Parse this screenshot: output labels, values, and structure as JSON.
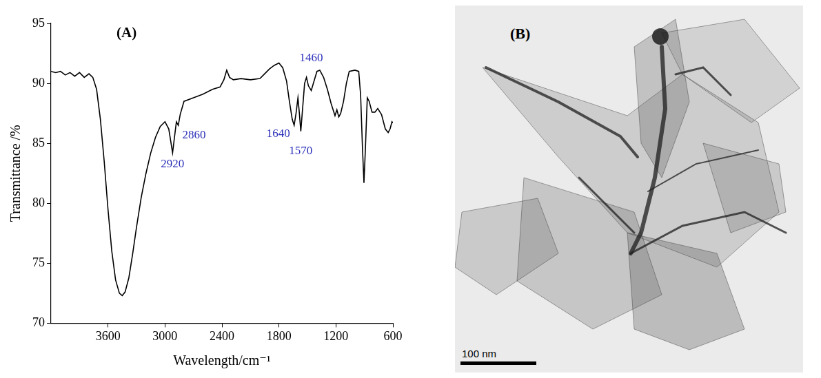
{
  "chart_data": {
    "type": "line",
    "panel_label": "(A)",
    "x_label": "Wavelength/cm⁻¹",
    "y_label": "Transmittance /%",
    "xlim": [
      4200,
      600
    ],
    "xticks": [
      3600,
      3000,
      2400,
      1800,
      1200,
      600
    ],
    "ylim": [
      70,
      95
    ],
    "yticks": [
      70,
      75,
      80,
      85,
      90,
      95
    ],
    "grid": false,
    "color": "#000000",
    "x": [
      4200,
      4150,
      4100,
      4050,
      4000,
      3950,
      3900,
      3850,
      3800,
      3760,
      3720,
      3680,
      3640,
      3600,
      3560,
      3520,
      3480,
      3450,
      3420,
      3380,
      3340,
      3300,
      3250,
      3200,
      3150,
      3100,
      3050,
      3000,
      2960,
      2940,
      2920,
      2900,
      2880,
      2860,
      2840,
      2800,
      2700,
      2600,
      2500,
      2420,
      2380,
      2350,
      2320,
      2280,
      2200,
      2100,
      2000,
      1950,
      1900,
      1850,
      1800,
      1760,
      1720,
      1690,
      1660,
      1640,
      1620,
      1600,
      1585,
      1570,
      1555,
      1530,
      1510,
      1490,
      1460,
      1430,
      1400,
      1370,
      1330,
      1290,
      1250,
      1210,
      1190,
      1170,
      1150,
      1120,
      1090,
      1060,
      1000,
      960,
      940,
      920,
      905,
      890,
      870,
      850,
      820,
      790,
      760,
      720,
      680,
      650,
      630,
      610,
      600
    ],
    "values": [
      91.0,
      90.9,
      91.0,
      90.7,
      90.9,
      90.6,
      90.9,
      90.5,
      90.8,
      90.5,
      89.5,
      87.0,
      83.5,
      79.5,
      76.0,
      73.6,
      72.5,
      72.3,
      72.6,
      73.8,
      75.8,
      78.0,
      80.5,
      82.5,
      84.2,
      85.5,
      86.4,
      86.8,
      86.2,
      85.2,
      84.2,
      85.5,
      86.8,
      86.5,
      87.4,
      88.5,
      88.8,
      89.1,
      89.5,
      89.7,
      90.3,
      91.1,
      90.5,
      90.3,
      90.4,
      90.3,
      90.4,
      90.8,
      91.2,
      91.5,
      91.7,
      91.3,
      90.2,
      88.5,
      87.0,
      86.5,
      87.5,
      88.8,
      87.5,
      86.0,
      87.5,
      90.0,
      90.5,
      89.8,
      89.4,
      90.2,
      91.0,
      91.1,
      90.5,
      89.5,
      88.3,
      87.3,
      87.8,
      87.2,
      87.5,
      88.5,
      90.0,
      91.0,
      91.1,
      91.0,
      89.0,
      84.5,
      81.7,
      84.5,
      88.8,
      88.5,
      87.6,
      87.6,
      87.9,
      87.4,
      86.2,
      85.9,
      86.2,
      86.8,
      86.7
    ],
    "annotations": [
      {
        "label": "2920",
        "x": 2920,
        "y": 84.2
      },
      {
        "label": "2860",
        "x": 2860,
        "y": 86.5
      },
      {
        "label": "1640",
        "x": 1640,
        "y": 86.5
      },
      {
        "label": "1570",
        "x": 1570,
        "y": 86.0
      },
      {
        "label": "1460",
        "x": 1460,
        "y": 89.4
      }
    ]
  },
  "image_panel": {
    "panel_label": "(B)",
    "scale_bar": "100 nm"
  }
}
